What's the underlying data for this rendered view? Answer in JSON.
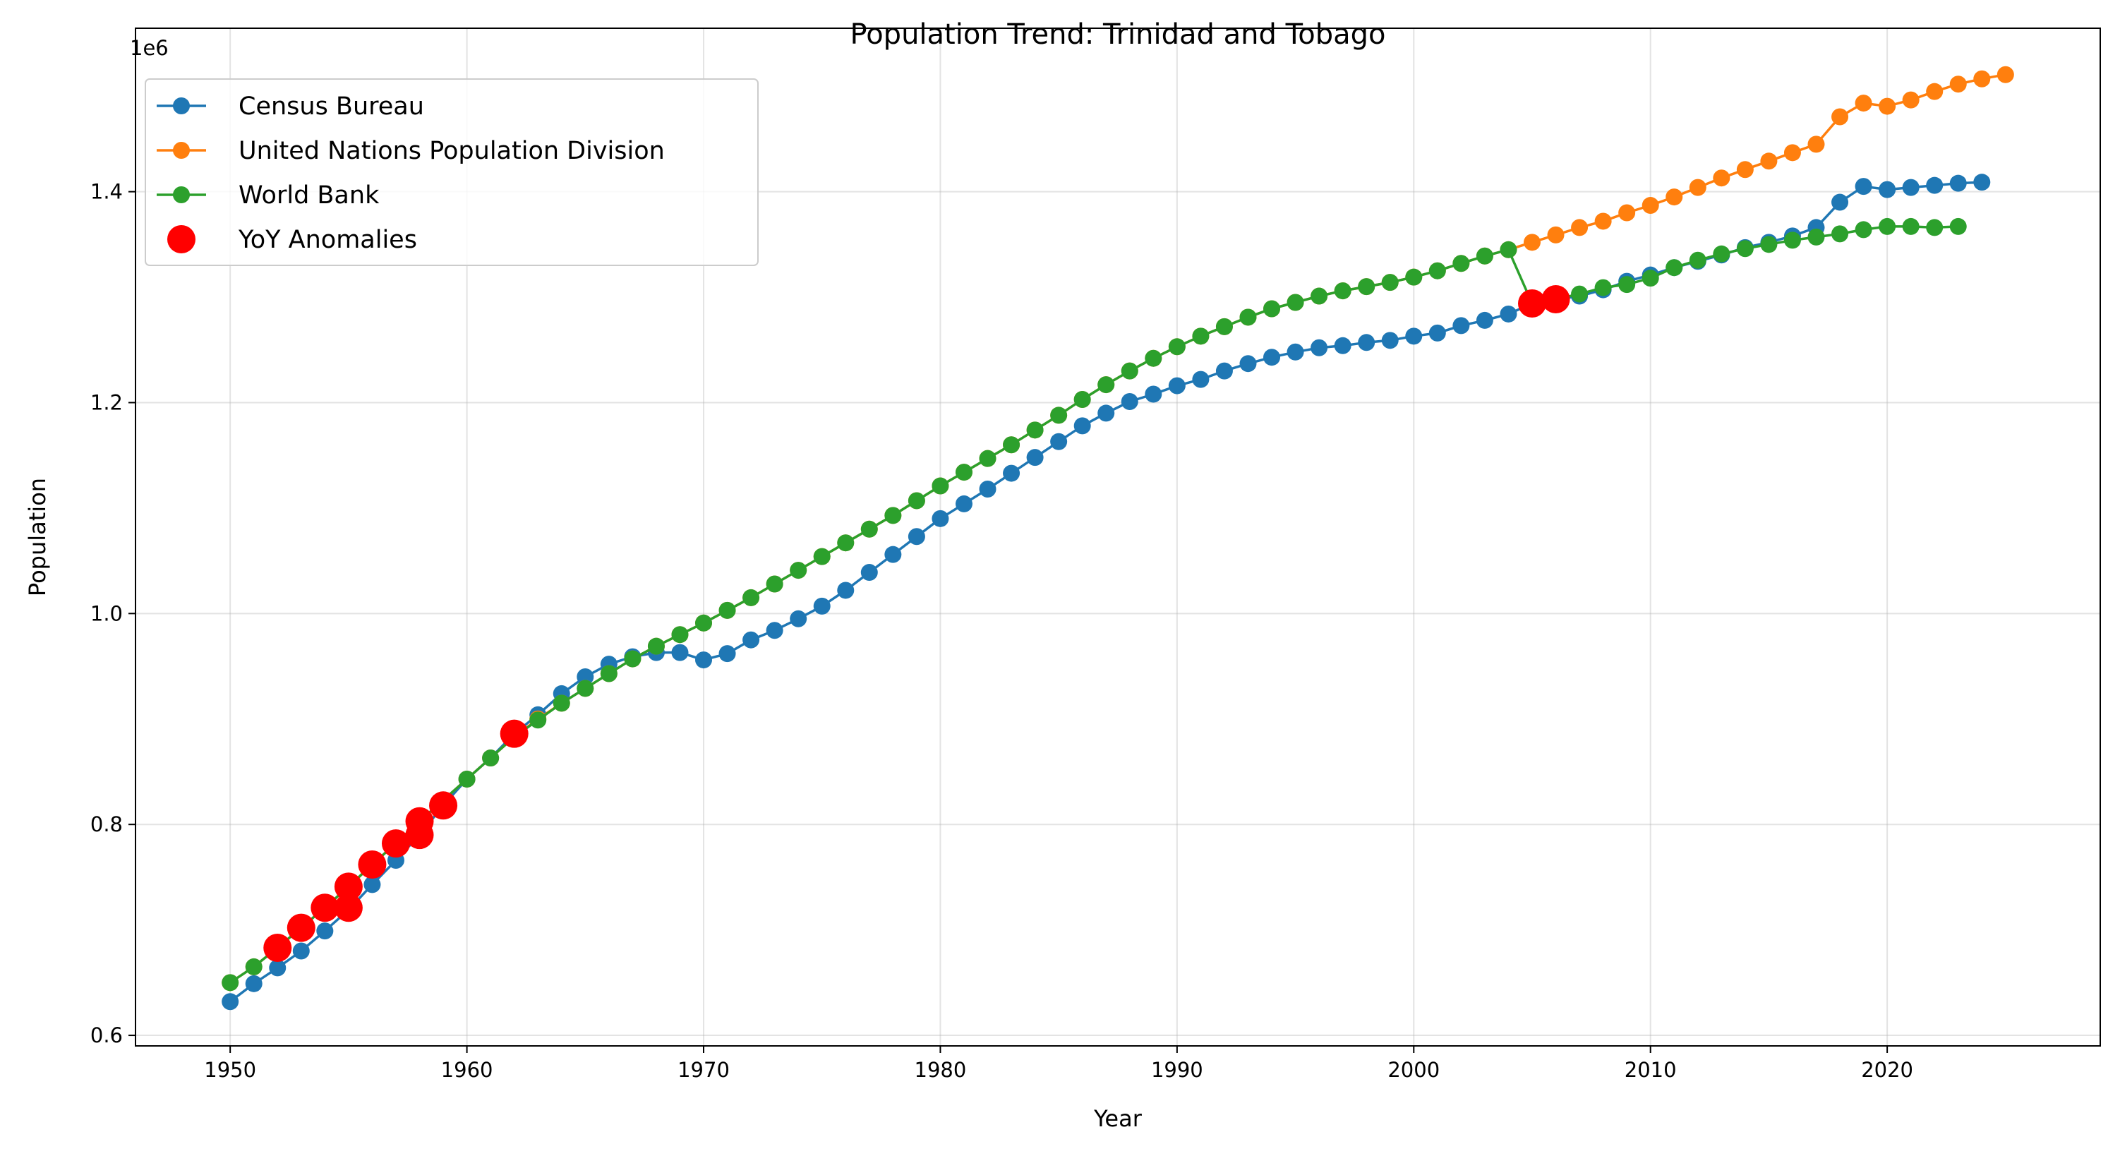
{
  "chart_data": {
    "type": "line",
    "title": "Population Trend: Trinidad and Tobago",
    "xlabel": "Year",
    "ylabel": "Population",
    "y_offset_label": "1e6",
    "xlim": [
      1946,
      2029
    ],
    "ylim": [
      0.59,
      1.555
    ],
    "x_ticks": [
      1950,
      1960,
      1970,
      1980,
      1990,
      2000,
      2010,
      2020
    ],
    "x_tick_labels": [
      "1950",
      "1960",
      "1970",
      "1980",
      "1990",
      "2000",
      "2010",
      "2020"
    ],
    "y_ticks": [
      0.6,
      0.8,
      1.0,
      1.2,
      1.4
    ],
    "y_tick_labels": [
      "0.6",
      "0.8",
      "1.0",
      "1.2",
      "1.4"
    ],
    "grid": true,
    "legend_position": "top-left",
    "series": [
      {
        "name": "Census Bureau",
        "color": "#1f77b4",
        "x": [
          1950,
          1951,
          1952,
          1953,
          1954,
          1955,
          1956,
          1957,
          1958,
          1959,
          1960,
          1961,
          1962,
          1963,
          1964,
          1965,
          1966,
          1967,
          1968,
          1969,
          1970,
          1971,
          1972,
          1973,
          1974,
          1975,
          1976,
          1977,
          1978,
          1979,
          1980,
          1981,
          1982,
          1983,
          1984,
          1985,
          1986,
          1987,
          1988,
          1989,
          1990,
          1991,
          1992,
          1993,
          1994,
          1995,
          1996,
          1997,
          1998,
          1999,
          2000,
          2001,
          2002,
          2003,
          2004,
          2005,
          2006,
          2007,
          2008,
          2009,
          2010,
          2011,
          2012,
          2013,
          2014,
          2015,
          2016,
          2017,
          2018,
          2019,
          2020,
          2021,
          2022,
          2023,
          2024
        ],
        "y": [
          0.632,
          0.649,
          0.664,
          0.68,
          0.699,
          0.719,
          0.743,
          0.766,
          0.79,
          0.818,
          0.843,
          0.863,
          0.886,
          0.904,
          0.924,
          0.94,
          0.952,
          0.959,
          0.963,
          0.963,
          0.956,
          0.962,
          0.975,
          0.984,
          0.995,
          1.007,
          1.022,
          1.039,
          1.056,
          1.073,
          1.09,
          1.104,
          1.118,
          1.133,
          1.148,
          1.163,
          1.178,
          1.19,
          1.201,
          1.208,
          1.216,
          1.222,
          1.23,
          1.237,
          1.243,
          1.248,
          1.252,
          1.254,
          1.257,
          1.259,
          1.263,
          1.266,
          1.273,
          1.278,
          1.284,
          1.294,
          1.298,
          1.301,
          1.307,
          1.315,
          1.321,
          1.328,
          1.334,
          1.34,
          1.347,
          1.352,
          1.358,
          1.366,
          1.39,
          1.405,
          1.402,
          1.404,
          1.406,
          1.408,
          1.409
        ]
      },
      {
        "name": "United Nations Population Division",
        "color": "#ff7f0e",
        "x": [
          1950,
          1951,
          1952,
          1953,
          1954,
          1955,
          1956,
          1957,
          1958,
          1959,
          1960,
          1961,
          1962,
          1963,
          1964,
          1965,
          1966,
          1967,
          1968,
          1969,
          1970,
          1971,
          1972,
          1973,
          1974,
          1975,
          1976,
          1977,
          1978,
          1979,
          1980,
          1981,
          1982,
          1983,
          1984,
          1985,
          1986,
          1987,
          1988,
          1989,
          1990,
          1991,
          1992,
          1993,
          1994,
          1995,
          1996,
          1997,
          1998,
          1999,
          2000,
          2001,
          2002,
          2003,
          2004,
          2005,
          2006,
          2007,
          2008,
          2009,
          2010,
          2011,
          2012,
          2013,
          2014,
          2015,
          2016,
          2017,
          2018,
          2019,
          2020,
          2021,
          2022,
          2023,
          2024,
          2025
        ],
        "y": [
          0.65,
          0.665,
          0.683,
          0.702,
          0.721,
          0.741,
          0.762,
          0.782,
          0.803,
          0.823,
          0.843,
          0.863,
          0.883,
          0.9,
          0.915,
          0.929,
          0.943,
          0.957,
          0.969,
          0.98,
          0.991,
          1.003,
          1.015,
          1.028,
          1.041,
          1.054,
          1.067,
          1.08,
          1.093,
          1.107,
          1.121,
          1.134,
          1.147,
          1.16,
          1.174,
          1.188,
          1.203,
          1.217,
          1.23,
          1.242,
          1.253,
          1.263,
          1.272,
          1.281,
          1.289,
          1.295,
          1.301,
          1.306,
          1.31,
          1.314,
          1.319,
          1.325,
          1.332,
          1.339,
          1.345,
          1.352,
          1.359,
          1.366,
          1.372,
          1.38,
          1.387,
          1.395,
          1.404,
          1.413,
          1.421,
          1.429,
          1.437,
          1.445,
          1.471,
          1.484,
          1.481,
          1.487,
          1.495,
          1.502,
          1.507,
          1.511
        ]
      },
      {
        "name": "World Bank",
        "color": "#2ca02c",
        "x": [
          1950,
          1951,
          1952,
          1953,
          1954,
          1955,
          1956,
          1957,
          1958,
          1959,
          1960,
          1961,
          1962,
          1963,
          1964,
          1965,
          1966,
          1967,
          1968,
          1969,
          1970,
          1971,
          1972,
          1973,
          1974,
          1975,
          1976,
          1977,
          1978,
          1979,
          1980,
          1981,
          1982,
          1983,
          1984,
          1985,
          1986,
          1987,
          1988,
          1989,
          1990,
          1991,
          1992,
          1993,
          1994,
          1995,
          1996,
          1997,
          1998,
          1999,
          2000,
          2001,
          2002,
          2003,
          2004,
          2005,
          2006,
          2007,
          2008,
          2009,
          2010,
          2011,
          2012,
          2013,
          2014,
          2015,
          2016,
          2017,
          2018,
          2019,
          2020,
          2021,
          2022,
          2023
        ],
        "y": [
          0.65,
          0.665,
          0.683,
          0.702,
          0.721,
          0.741,
          0.762,
          0.782,
          0.803,
          0.823,
          0.843,
          0.863,
          0.883,
          0.899,
          0.915,
          0.929,
          0.943,
          0.957,
          0.969,
          0.98,
          0.991,
          1.003,
          1.015,
          1.028,
          1.041,
          1.054,
          1.067,
          1.08,
          1.093,
          1.107,
          1.121,
          1.134,
          1.147,
          1.16,
          1.174,
          1.188,
          1.203,
          1.217,
          1.23,
          1.242,
          1.253,
          1.263,
          1.272,
          1.281,
          1.289,
          1.295,
          1.301,
          1.306,
          1.31,
          1.314,
          1.319,
          1.325,
          1.332,
          1.339,
          1.345,
          1.294,
          1.298,
          1.303,
          1.309,
          1.312,
          1.318,
          1.328,
          1.335,
          1.341,
          1.346,
          1.35,
          1.354,
          1.357,
          1.36,
          1.364,
          1.367,
          1.367,
          1.366,
          1.367
        ]
      }
    ],
    "anomalies": {
      "name": "YoY Anomalies",
      "color": "#ff0000",
      "x": [
        1952,
        1953,
        1954,
        1955,
        1955,
        1956,
        1957,
        1958,
        1958,
        1959,
        1962,
        2005,
        2006
      ],
      "y": [
        0.683,
        0.702,
        0.721,
        0.721,
        0.741,
        0.762,
        0.782,
        0.79,
        0.803,
        0.818,
        0.886,
        1.294,
        1.298
      ]
    }
  }
}
